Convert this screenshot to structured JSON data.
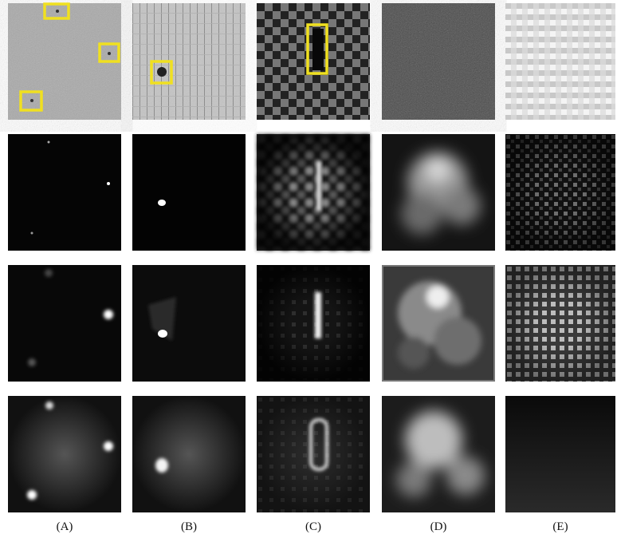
{
  "column_labels": [
    "(A)",
    "(B)",
    "(C)",
    "(D)",
    "(E)"
  ]
}
